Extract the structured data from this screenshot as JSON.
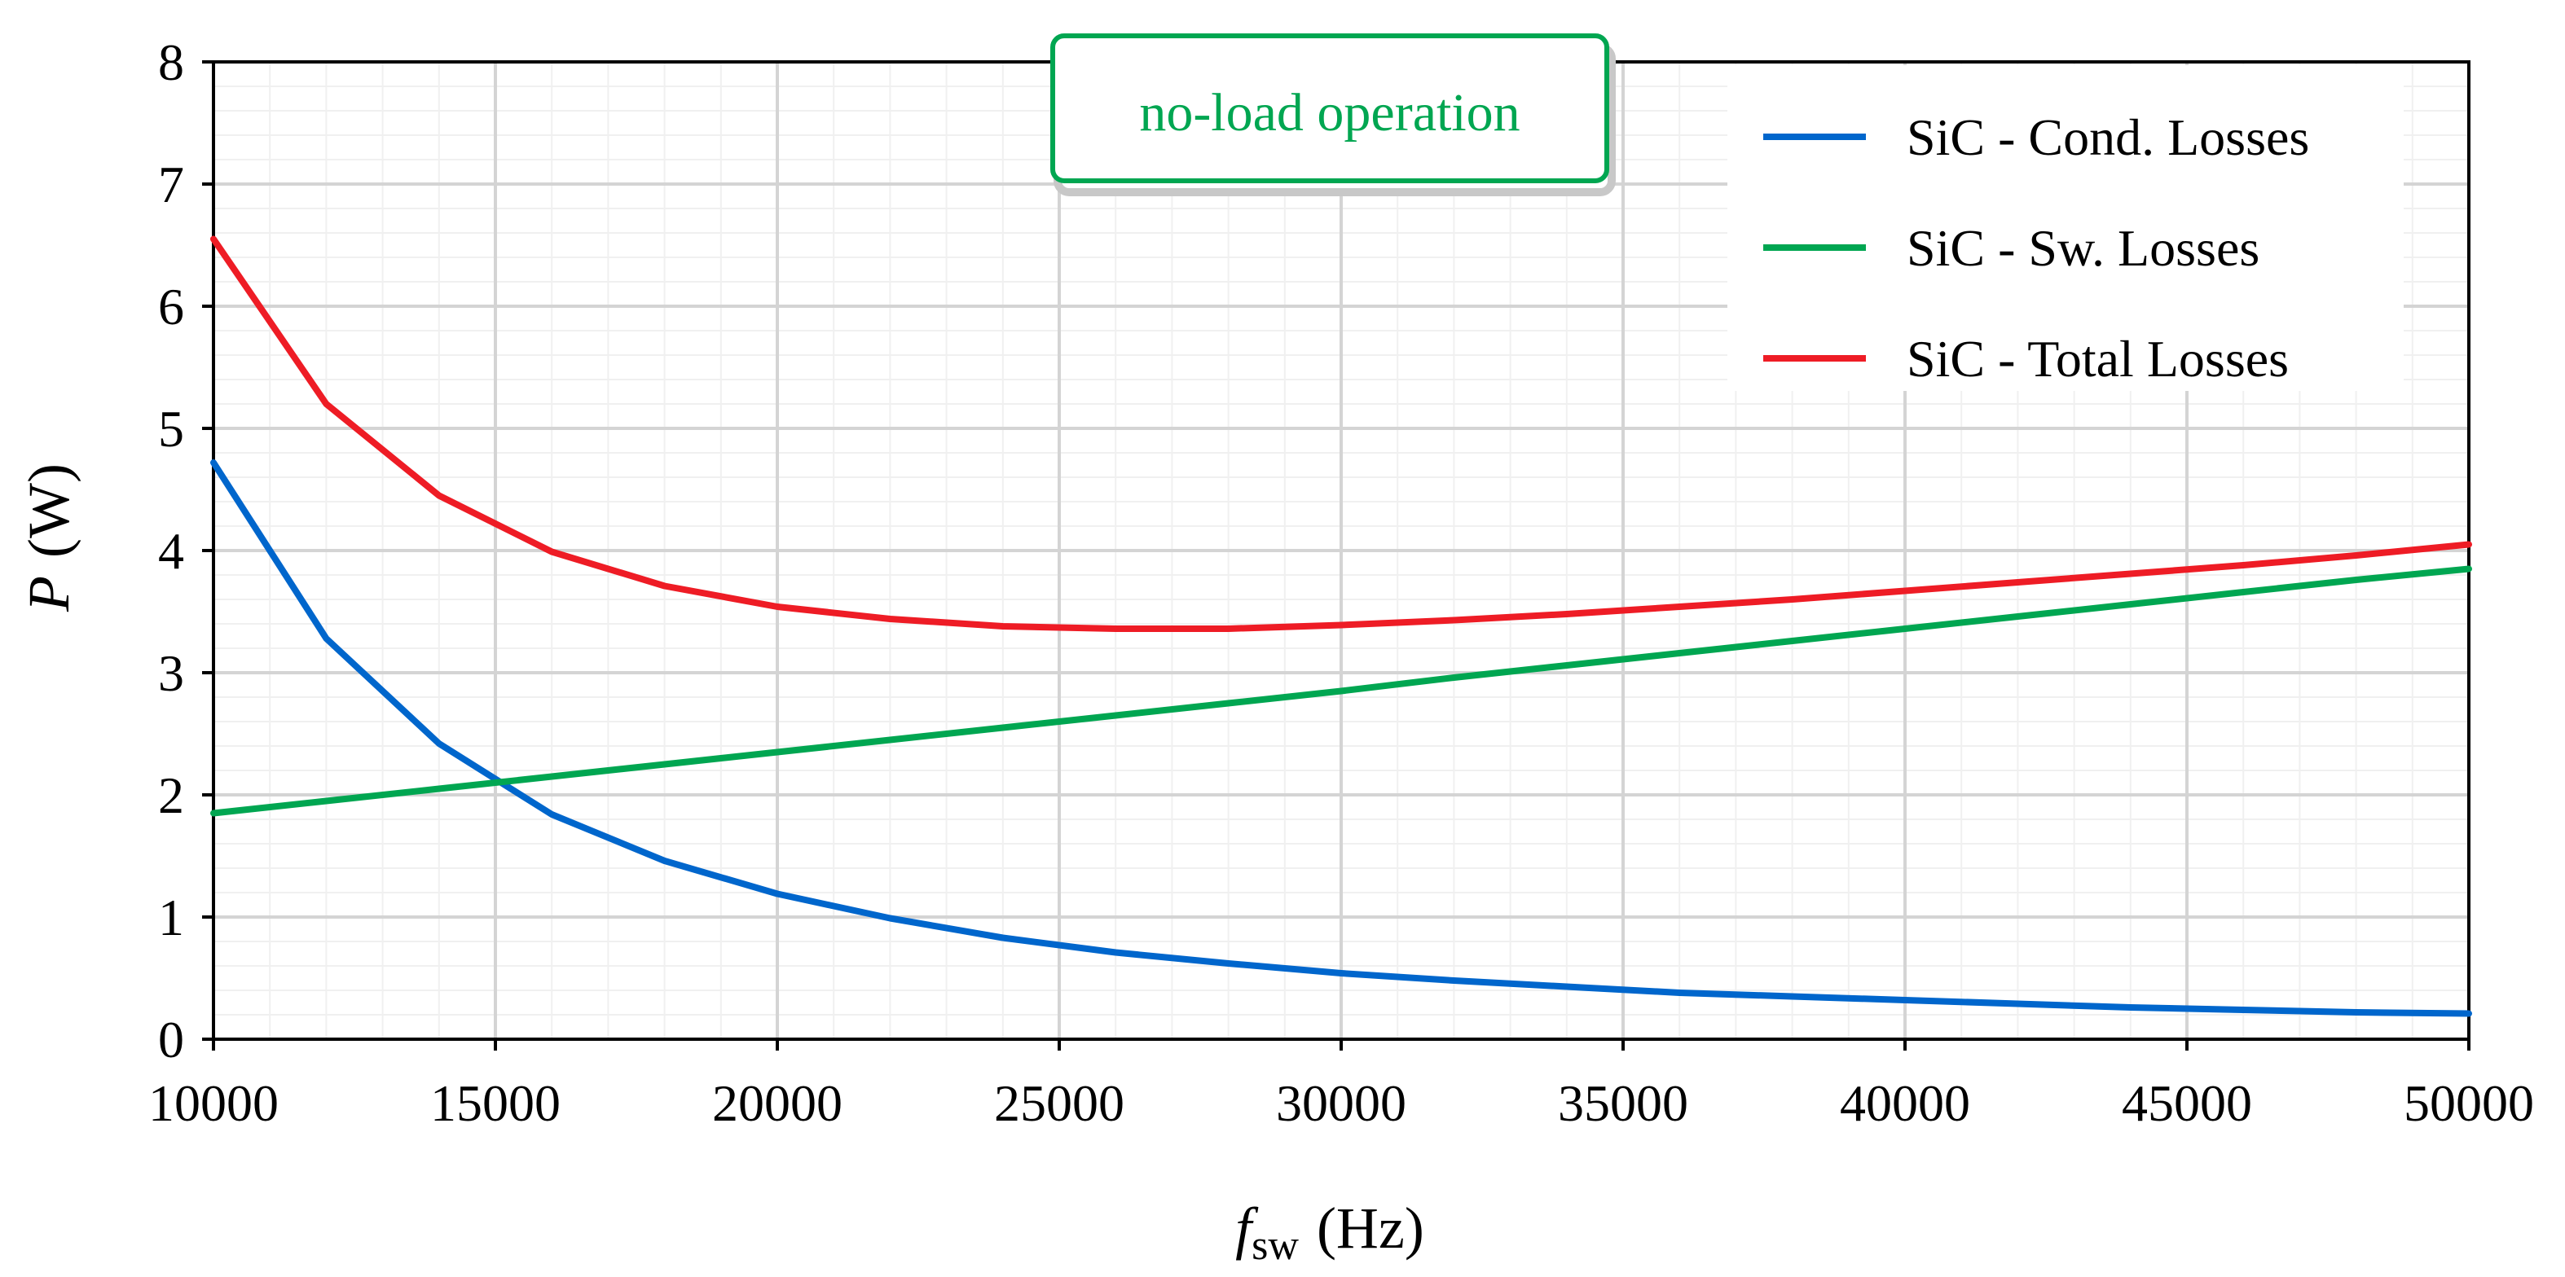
{
  "chart_data": {
    "type": "line",
    "title": "",
    "annotation": "no-load operation",
    "xlabel": {
      "var": "f",
      "sub": "sw",
      "unit": "(Hz)"
    },
    "ylabel": {
      "var": "P",
      "unit": "(W)"
    },
    "xlim": [
      10000,
      50000
    ],
    "ylim": [
      0,
      8
    ],
    "x_ticks": [
      10000,
      15000,
      20000,
      25000,
      30000,
      35000,
      40000,
      45000,
      50000
    ],
    "y_ticks": [
      0,
      1,
      2,
      3,
      4,
      5,
      6,
      7,
      8
    ],
    "grid": true,
    "legend_position": "top-right",
    "x": [
      10000,
      12000,
      14000,
      16000,
      18000,
      20000,
      22000,
      24000,
      26000,
      28000,
      30000,
      32000,
      34000,
      36000,
      38000,
      40000,
      42000,
      44000,
      46000,
      48000,
      50000
    ],
    "series": [
      {
        "name": "SiC - Cond. Losses",
        "color": "#0066cc",
        "values": [
          4.72,
          3.28,
          2.42,
          1.84,
          1.46,
          1.19,
          0.99,
          0.83,
          0.71,
          0.62,
          0.54,
          0.48,
          0.43,
          0.38,
          0.35,
          0.32,
          0.29,
          0.26,
          0.24,
          0.22,
          0.21
        ]
      },
      {
        "name": "SiC - Sw. Losses",
        "color": "#00a651",
        "values": [
          1.85,
          1.95,
          2.05,
          2.15,
          2.25,
          2.35,
          2.45,
          2.55,
          2.65,
          2.75,
          2.85,
          2.96,
          3.06,
          3.16,
          3.26,
          3.36,
          3.46,
          3.56,
          3.66,
          3.76,
          3.85
        ]
      },
      {
        "name": "SiC - Total Losses",
        "color": "#ee1c25",
        "values": [
          6.55,
          5.2,
          4.45,
          3.99,
          3.71,
          3.54,
          3.44,
          3.38,
          3.36,
          3.36,
          3.39,
          3.43,
          3.48,
          3.54,
          3.6,
          3.67,
          3.74,
          3.81,
          3.88,
          3.96,
          4.05
        ]
      }
    ]
  }
}
